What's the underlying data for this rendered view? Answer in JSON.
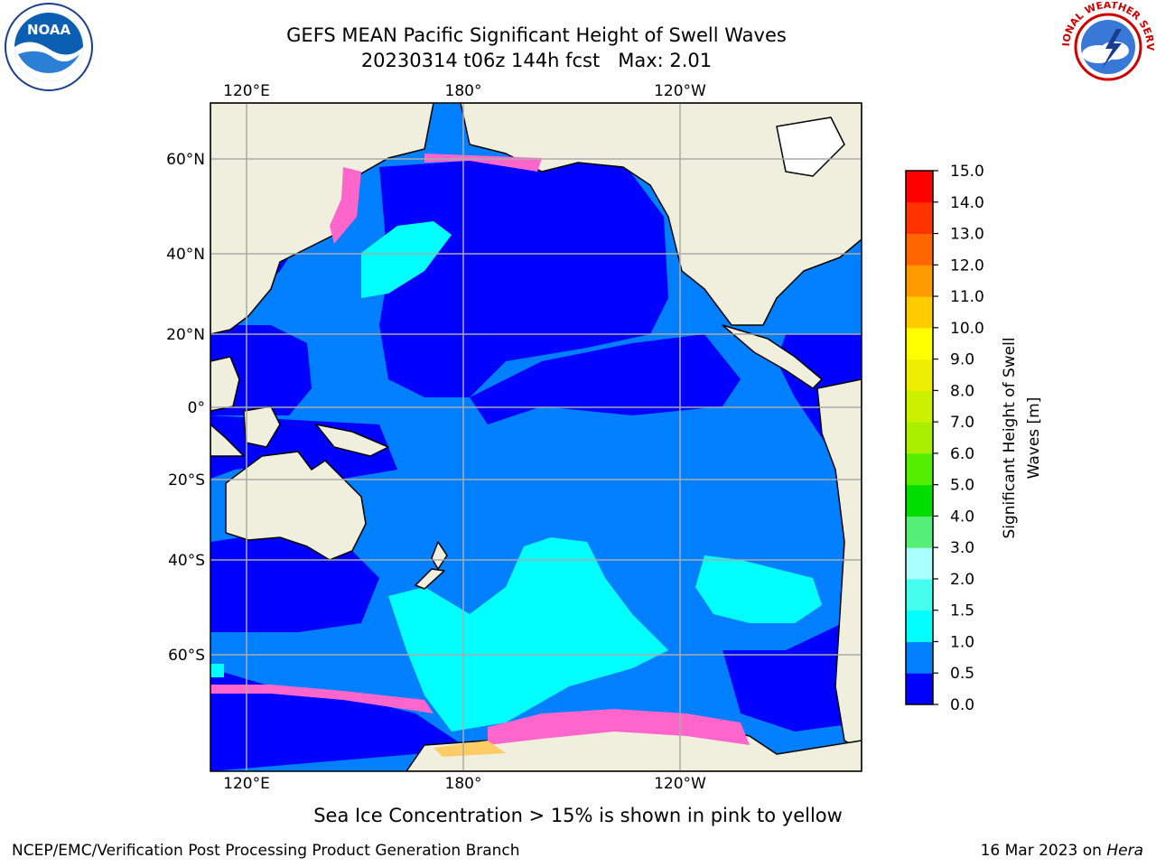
{
  "header": {
    "title_line1": "GEFS MEAN Pacific Significant Height of Swell Waves",
    "title_line2": "20230314 t06z 144h fcst   Max: 2.01"
  },
  "map": {
    "lon_labels_top": [
      "120°E",
      "180°",
      "120°W"
    ],
    "lon_labels_bottom": [
      "120°E",
      "180°",
      "120°W"
    ],
    "lat_labels": [
      "60°N",
      "40°N",
      "20°N",
      "0°",
      "20°S",
      "40°S",
      "60°S"
    ],
    "colors": {
      "ocean_low": "#0000ff",
      "ocean_mid": "#0080ff",
      "ocean_high": "#00ffff",
      "land": "#f0eedd",
      "ice": "#ff66cc"
    }
  },
  "colorbar": {
    "label_line1": "Significant Height of Swell",
    "label_line2": "Waves [m]",
    "ticks": [
      "0.0",
      "0.5",
      "1.0",
      "1.5",
      "2.0",
      "3.0",
      "4.0",
      "5.0",
      "6.0",
      "7.0",
      "8.0",
      "9.0",
      "10.0",
      "11.0",
      "12.0",
      "13.0",
      "14.0",
      "15.0"
    ],
    "colors": [
      "#0000ff",
      "#0080ff",
      "#00ffff",
      "#44ffee",
      "#aaffff",
      "#55ee77",
      "#00dd00",
      "#55ee00",
      "#aaee00",
      "#ccf000",
      "#eeee00",
      "#ffff00",
      "#ffcc00",
      "#ff9900",
      "#ff6600",
      "#ff3300",
      "#ff0000"
    ]
  },
  "footer": {
    "note": "Sea Ice Concentration > 15% is shown in pink to yellow",
    "credit": "NCEP/EMC/Verification Post Processing Product Generation Branch",
    "date": "16 Mar 2023 on ",
    "host": "Hera"
  },
  "logos": {
    "noaa_text": "NOAA",
    "nws_text": "NATIONAL WEATHER SERVICE"
  }
}
